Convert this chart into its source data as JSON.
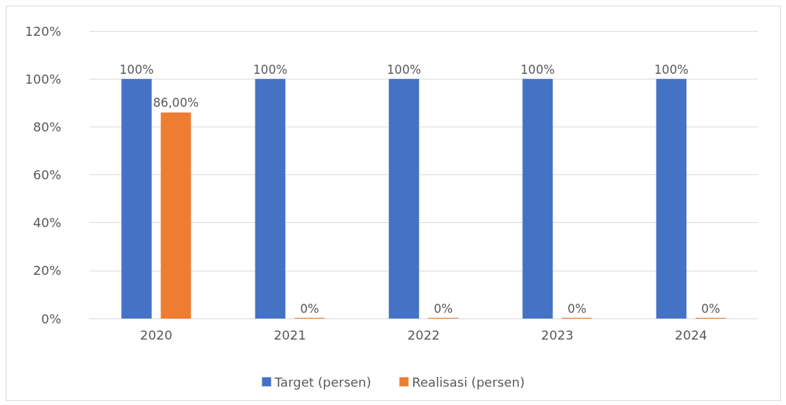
{
  "chart_data": {
    "type": "bar",
    "categories": [
      "2020",
      "2021",
      "2022",
      "2023",
      "2024"
    ],
    "series": [
      {
        "name": "Target (persen)",
        "color": "#4472c4",
        "values": [
          100,
          100,
          100,
          100,
          100
        ],
        "value_labels": [
          "100%",
          "100%",
          "100%",
          "100%",
          "100%"
        ]
      },
      {
        "name": "Realisasi (persen)",
        "color": "#ed7d31",
        "values": [
          86,
          0,
          0,
          0,
          0
        ],
        "value_labels": [
          "86,00%",
          "0%",
          "0%",
          "0%",
          "0%"
        ]
      }
    ],
    "ylim": [
      0,
      120
    ],
    "yticks": [
      {
        "value": 0,
        "label": "0%"
      },
      {
        "value": 20,
        "label": "20%"
      },
      {
        "value": 40,
        "label": "40%"
      },
      {
        "value": 60,
        "label": "60%"
      },
      {
        "value": 80,
        "label": "80%"
      },
      {
        "value": 100,
        "label": "100%"
      },
      {
        "value": 120,
        "label": "120%"
      }
    ],
    "grid": "y",
    "legend": "bottom"
  }
}
